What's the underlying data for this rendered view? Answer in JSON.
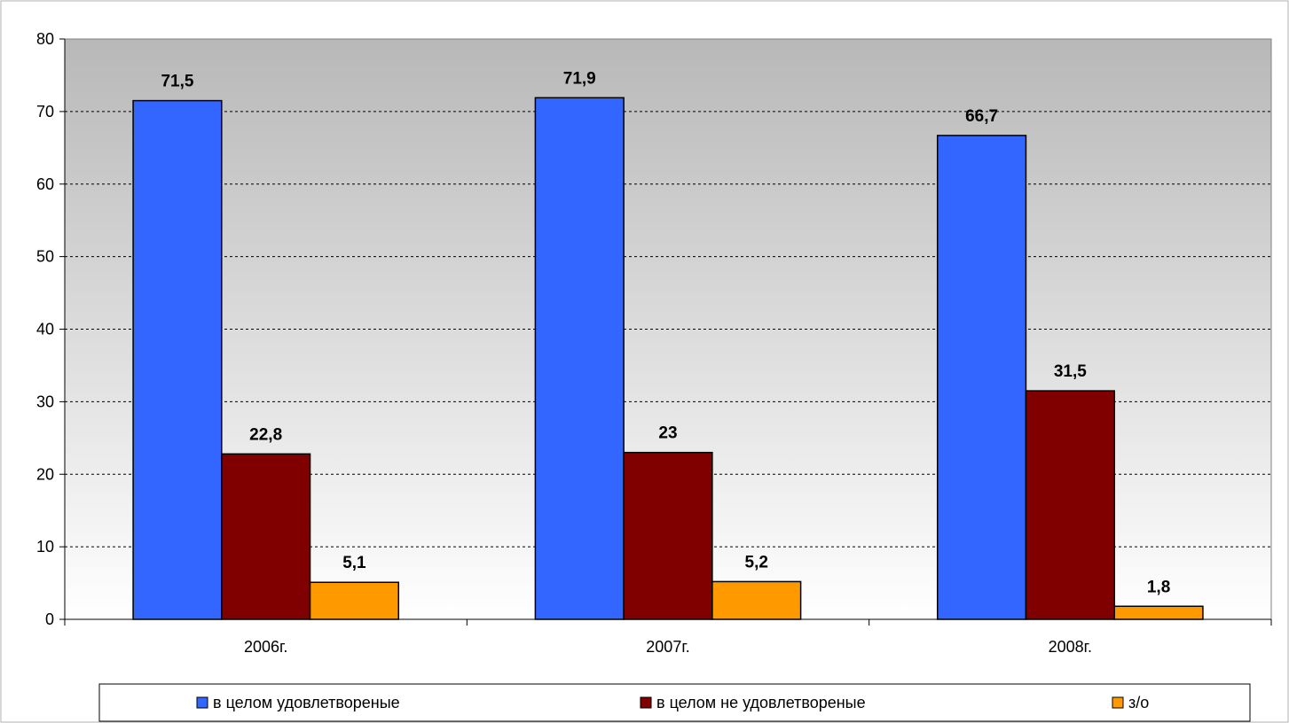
{
  "chart_data": {
    "type": "bar",
    "categories": [
      "2006г.",
      "2007г.",
      "2008г."
    ],
    "series": [
      {
        "name": "в целом удовлетвореные",
        "values": [
          71.5,
          71.9,
          66.7
        ],
        "labels": [
          "71,5",
          "71,9",
          "66,7"
        ],
        "color": "#3366FF"
      },
      {
        "name": "в целом не удовлетвореные",
        "values": [
          22.8,
          23,
          31.5
        ],
        "labels": [
          "22,8",
          "23",
          "31,5"
        ],
        "color": "#800000"
      },
      {
        "name": "з/о",
        "values": [
          5.1,
          5.2,
          1.8
        ],
        "labels": [
          "5,1",
          "5,2",
          "1,8"
        ],
        "color": "#FF9900"
      }
    ],
    "ylim": [
      0,
      80
    ],
    "yticks": [
      0,
      10,
      20,
      30,
      40,
      50,
      60,
      70,
      80
    ],
    "grid": true,
    "legend_position": "bottom"
  }
}
